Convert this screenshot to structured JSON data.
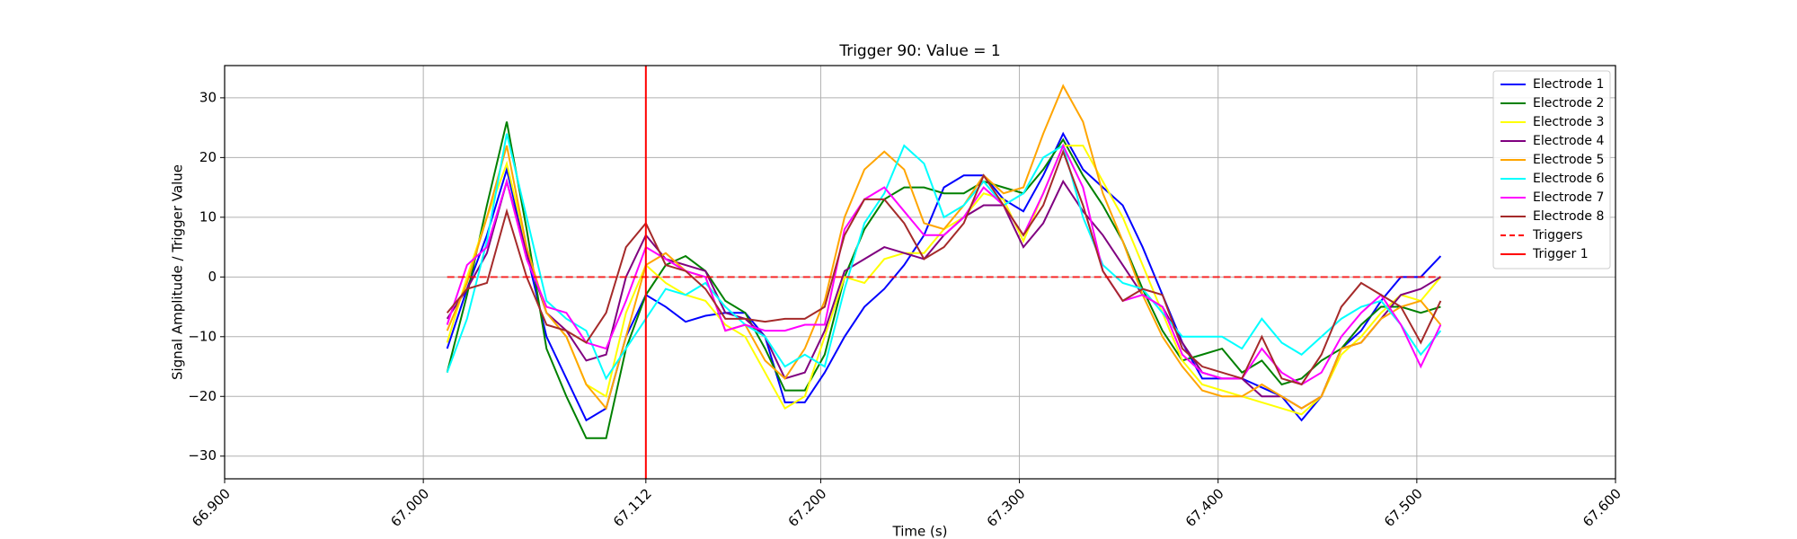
{
  "chart_data": {
    "type": "line",
    "title": "Trigger 90: Value = 1",
    "xlabel": "Time (s)",
    "ylabel": "Signal Amplitude / Trigger Value",
    "x": [
      67.012,
      67.022,
      67.032,
      67.042,
      67.052,
      67.062,
      67.072,
      67.082,
      67.092,
      67.102,
      67.112,
      67.122,
      67.132,
      67.142,
      67.152,
      67.162,
      67.172,
      67.182,
      67.192,
      67.202,
      67.212,
      67.222,
      67.232,
      67.242,
      67.252,
      67.262,
      67.272,
      67.282,
      67.292,
      67.302,
      67.312,
      67.322,
      67.332,
      67.342,
      67.352,
      67.362,
      67.372,
      67.382,
      67.392,
      67.402,
      67.412,
      67.422,
      67.432,
      67.442,
      67.452,
      67.462,
      67.472,
      67.482,
      67.492,
      67.502,
      67.512
    ],
    "series": [
      {
        "name": "Electrode 1",
        "color": "#0000ff",
        "values": [
          -12,
          -2,
          7,
          18,
          4,
          -10,
          -17,
          -24,
          -22,
          -10,
          -3,
          -5,
          -7.5,
          -6.5,
          -6,
          -6,
          -10,
          -21,
          -21,
          -16,
          -10,
          -5,
          -2,
          2,
          7,
          15,
          17,
          17,
          13,
          11,
          17,
          24,
          18,
          15,
          12,
          5,
          -3,
          -11,
          -17,
          -17,
          -17,
          -18.5,
          -20,
          -24,
          -20,
          -12,
          -9,
          -4,
          0,
          0,
          3.5
        ]
      },
      {
        "name": "Electrode 2",
        "color": "#008000",
        "values": [
          -16,
          -3,
          12,
          26,
          8,
          -12,
          -20,
          -27,
          -27,
          -12,
          -3,
          2,
          3.5,
          1,
          -4,
          -6,
          -12,
          -19,
          -19,
          -13,
          0,
          8,
          13,
          15,
          15,
          14,
          14,
          16,
          15,
          14,
          18,
          23,
          17,
          12,
          6,
          -2,
          -9,
          -14,
          -13,
          -12,
          -16,
          -14,
          -18,
          -17,
          -14,
          -12,
          -8,
          -5,
          -5,
          -6,
          -5
        ]
      },
      {
        "name": "Electrode 3",
        "color": "#ffff00",
        "values": [
          -11,
          0,
          10,
          19,
          5,
          -6,
          -10,
          -18,
          -20,
          -6,
          2,
          -1,
          -3,
          -4,
          -8,
          -10,
          -16,
          -22,
          -20,
          -10,
          0,
          -1,
          3,
          4,
          4,
          8,
          10,
          14,
          13,
          6,
          14,
          22,
          22,
          16,
          10,
          2,
          -6,
          -14,
          -18,
          -19,
          -20,
          -21,
          -22,
          -23,
          -20,
          -13,
          -10,
          -6,
          -3,
          -4,
          0
        ]
      },
      {
        "name": "Electrode 4",
        "color": "#800080",
        "values": [
          -7,
          -2,
          4,
          16,
          4,
          -6,
          -9,
          -14,
          -13,
          0,
          7,
          3,
          2,
          1,
          -6,
          -7,
          -10,
          -17,
          -16,
          -9,
          1,
          3,
          5,
          4,
          3,
          7,
          10,
          12,
          12,
          5,
          9,
          16,
          11,
          7,
          2,
          -3,
          -5,
          -11,
          -16,
          -17,
          -17,
          -20,
          -20,
          -22,
          -20,
          -12,
          -11,
          -7,
          -3,
          -2,
          0
        ]
      },
      {
        "name": "Electrode 5",
        "color": "#ffa500",
        "values": [
          -9,
          -1,
          10,
          22,
          5,
          -6,
          -10,
          -18,
          -22,
          -10,
          2,
          4,
          1,
          0,
          -9,
          -8,
          -14,
          -17,
          -12,
          -4,
          10,
          18,
          21,
          18,
          9,
          8,
          12,
          17,
          14,
          15,
          24,
          32,
          26,
          14,
          6,
          -3,
          -10,
          -15,
          -19,
          -20,
          -20,
          -18,
          -20,
          -22,
          -20,
          -12,
          -11,
          -7,
          -5,
          -4,
          -8
        ]
      },
      {
        "name": "Electrode 6",
        "color": "#00ffff",
        "values": [
          -16,
          -7,
          6,
          24,
          10,
          -4,
          -7,
          -9,
          -17,
          -12,
          -7,
          -2,
          -3,
          -1,
          -5,
          -8,
          -10,
          -15,
          -13,
          -15,
          -2,
          9,
          14,
          22,
          19,
          10,
          12,
          16,
          12,
          14,
          20,
          22,
          10,
          2,
          -1,
          -2,
          -6,
          -10,
          -10,
          -10,
          -12,
          -7,
          -11,
          -13,
          -10,
          -7,
          -5,
          -4,
          -8,
          -13,
          -9
        ]
      },
      {
        "name": "Electrode 7",
        "color": "#ff00ff",
        "values": [
          -8,
          2,
          5,
          16,
          3,
          -5,
          -6,
          -11,
          -12,
          -4,
          5,
          3,
          1,
          0,
          -9,
          -8,
          -9,
          -9,
          -8,
          -8,
          8,
          13,
          15,
          11,
          7,
          7,
          10,
          15,
          12,
          7,
          14,
          22,
          15,
          1,
          -4,
          -3,
          -5,
          -13,
          -16,
          -17,
          -17,
          -12,
          -16,
          -18,
          -16,
          -10,
          -6,
          -3,
          -8,
          -15,
          -8
        ]
      },
      {
        "name": "Electrode 8",
        "color": "#a52a2a",
        "values": [
          -6,
          -2,
          -1,
          11,
          0,
          -8,
          -9,
          -11,
          -6,
          5,
          9,
          2,
          1,
          -2,
          -7,
          -7,
          -7.5,
          -7,
          -7,
          -5,
          7,
          13,
          13,
          9,
          3,
          5,
          9,
          17,
          12,
          7,
          12,
          21,
          12,
          1,
          -4,
          -2,
          -3,
          -12,
          -15,
          -16,
          -17,
          -10,
          -17,
          -18,
          -13,
          -5,
          -1,
          -3,
          -5,
          -11,
          -4
        ]
      }
    ],
    "triggers": {
      "name": "Triggers",
      "color": "#ff0000",
      "x": [
        67.012,
        67.512
      ],
      "values": [
        0,
        0
      ]
    },
    "trigger_line": {
      "name": "Trigger 1",
      "color": "#ff0000",
      "x": 67.112
    },
    "xlim": [
      66.9,
      67.6
    ],
    "ylim": [
      -33.8,
      35.4
    ],
    "xticks": [
      {
        "value": 66.9,
        "label": "66.900"
      },
      {
        "value": 67.0,
        "label": "67.000"
      },
      {
        "value": 67.112,
        "label": "67.112"
      },
      {
        "value": 67.2,
        "label": "67.200"
      },
      {
        "value": 67.3,
        "label": "67.300"
      },
      {
        "value": 67.4,
        "label": "67.400"
      },
      {
        "value": 67.5,
        "label": "67.500"
      },
      {
        "value": 67.6,
        "label": "67.600"
      }
    ],
    "yticks": [
      {
        "value": -30,
        "label": "−30"
      },
      {
        "value": -20,
        "label": "−20"
      },
      {
        "value": -10,
        "label": "−10"
      },
      0,
      10,
      20,
      30
    ],
    "grid": true,
    "legend": "upper right"
  }
}
